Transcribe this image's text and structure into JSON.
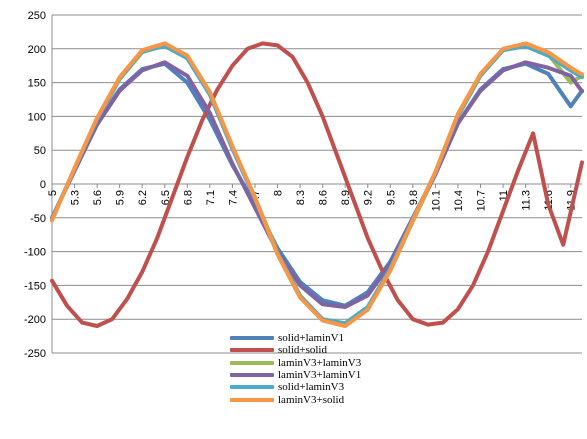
{
  "chart_data": {
    "type": "line",
    "title": "",
    "xlabel": "",
    "ylabel": "",
    "ylim": [
      -250,
      250
    ],
    "yticks": [
      "250",
      "200",
      "150",
      "100",
      "50",
      "0",
      "-50",
      "-100",
      "-150",
      "-200",
      "-250"
    ],
    "xlim": [
      5.0,
      12.05
    ],
    "xticks": [
      "5",
      "5.3",
      "5.6",
      "5.9",
      "6.2",
      "6.5",
      "6.8",
      "7.1",
      "7.4",
      "7.7",
      "8",
      "8.3",
      "8.6",
      "8.9",
      "9.2",
      "9.5",
      "9.8",
      "10.1",
      "10.4",
      "10.7",
      "11",
      "11.3",
      "11.6",
      "11.9"
    ],
    "grid": true,
    "legend_position": "bottom",
    "series": [
      {
        "name": "solid+laminV1",
        "color": "#4F81BD",
        "x": [
          5.0,
          5.3,
          5.6,
          5.9,
          6.2,
          6.5,
          6.8,
          7.1,
          7.4,
          7.7,
          8.0,
          8.3,
          8.6,
          8.9,
          9.2,
          9.5,
          9.8,
          10.1,
          10.4,
          10.7,
          11.0,
          11.3,
          11.6,
          11.9,
          12.05
        ],
        "y": [
          -50,
          20,
          90,
          140,
          170,
          178,
          150,
          95,
          28,
          -30,
          -95,
          -145,
          -172,
          -180,
          -160,
          -115,
          -50,
          15,
          90,
          140,
          170,
          178,
          163,
          115,
          138
        ]
      },
      {
        "name": "solid+solid",
        "color": "#C0504D",
        "x": [
          5.0,
          5.2,
          5.4,
          5.6,
          5.8,
          6.0,
          6.2,
          6.4,
          6.6,
          6.8,
          7.0,
          7.2,
          7.4,
          7.6,
          7.8,
          8.0,
          8.2,
          8.4,
          8.6,
          8.8,
          9.0,
          9.2,
          9.4,
          9.6,
          9.8,
          10.0,
          10.2,
          10.4,
          10.6,
          10.8,
          11.0,
          11.2,
          11.4,
          11.6,
          11.8,
          12.05
        ],
        "y": [
          -143,
          -180,
          -205,
          -210,
          -200,
          -170,
          -130,
          -80,
          -20,
          40,
          95,
          140,
          175,
          200,
          208,
          205,
          188,
          150,
          100,
          40,
          -20,
          -80,
          -130,
          -172,
          -200,
          -208,
          -205,
          -185,
          -150,
          -100,
          -40,
          20,
          75,
          -30,
          -90,
          32
        ]
      },
      {
        "name": "laminV3+laminV3",
        "color": "#9BBB59",
        "x": [
          5.0,
          5.3,
          5.6,
          5.9,
          6.2,
          6.5,
          6.8,
          7.1,
          7.4,
          7.7,
          8.0,
          8.3,
          8.6,
          8.9,
          9.2,
          9.5,
          9.8,
          10.1,
          10.4,
          10.7,
          11.0,
          11.3,
          11.6,
          11.9,
          12.05
        ],
        "y": [
          -52,
          22,
          95,
          155,
          195,
          205,
          188,
          135,
          55,
          -20,
          -100,
          -165,
          -200,
          -208,
          -185,
          -128,
          -55,
          15,
          100,
          160,
          198,
          206,
          192,
          150,
          160
        ]
      },
      {
        "name": "laminV3+laminV1",
        "color": "#8064A2",
        "x": [
          5.0,
          5.3,
          5.6,
          5.9,
          6.2,
          6.5,
          6.8,
          7.1,
          7.4,
          7.7,
          8.0,
          8.3,
          8.6,
          8.9,
          9.2,
          9.5,
          9.8,
          10.1,
          10.4,
          10.7,
          11.0,
          11.3,
          11.6,
          11.9,
          12.05
        ],
        "y": [
          -50,
          20,
          88,
          138,
          168,
          180,
          160,
          105,
          30,
          -35,
          -100,
          -150,
          -178,
          -182,
          -165,
          -118,
          -50,
          14,
          90,
          138,
          168,
          180,
          172,
          160,
          137
        ]
      },
      {
        "name": "solid+laminV3",
        "color": "#4BACC6",
        "x": [
          5.0,
          5.3,
          5.6,
          5.9,
          6.2,
          6.5,
          6.8,
          7.1,
          7.4,
          7.7,
          8.0,
          8.3,
          8.6,
          8.9,
          9.2,
          9.5,
          9.8,
          10.1,
          10.4,
          10.7,
          11.0,
          11.3,
          11.6,
          11.9,
          12.05
        ],
        "y": [
          -52,
          23,
          96,
          156,
          196,
          204,
          186,
          132,
          52,
          -22,
          -102,
          -166,
          -200,
          -206,
          -182,
          -125,
          -52,
          17,
          102,
          161,
          198,
          204,
          190,
          168,
          158
        ]
      },
      {
        "name": "laminV3+solid",
        "color": "#F79646",
        "x": [
          5.0,
          5.3,
          5.6,
          5.9,
          6.2,
          6.5,
          6.8,
          7.1,
          7.4,
          7.7,
          8.0,
          8.3,
          8.6,
          8.9,
          9.2,
          9.5,
          9.8,
          10.1,
          10.4,
          10.7,
          11.0,
          11.3,
          11.6,
          11.9,
          12.05
        ],
        "y": [
          -54,
          24,
          98,
          158,
          198,
          208,
          190,
          136,
          56,
          -20,
          -104,
          -168,
          -202,
          -210,
          -186,
          -128,
          -54,
          18,
          104,
          163,
          200,
          208,
          195,
          172,
          162
        ]
      }
    ]
  }
}
